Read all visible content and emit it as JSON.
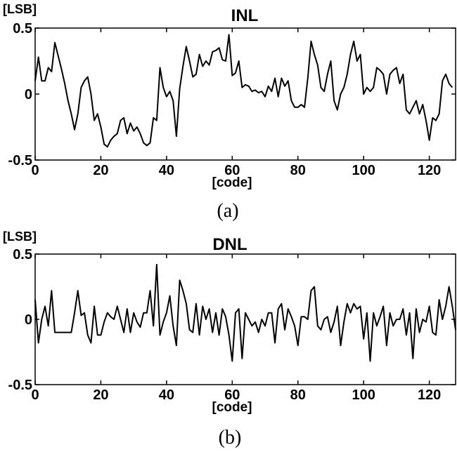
{
  "chart_data": [
    {
      "type": "line",
      "title": "INL",
      "ylabel": "[LSB]",
      "xlabel": "[code]",
      "caption": "(a)",
      "xlim": [
        0,
        128
      ],
      "ylim": [
        -0.5,
        0.5
      ],
      "xticks": [
        "0",
        "20",
        "40",
        "60",
        "80",
        "100",
        "120"
      ],
      "yticks": [
        "0.5",
        "0",
        "-0.5"
      ],
      "xtick_values": [
        0,
        20,
        40,
        60,
        80,
        100,
        120
      ],
      "ytick_values": [
        0.5,
        0,
        -0.5
      ],
      "grid": false,
      "series": [
        {
          "values": [
            0.1,
            0.28,
            0.1,
            0.1,
            0.2,
            0.17,
            0.39,
            0.29,
            0.19,
            0.08,
            -0.05,
            -0.15,
            -0.27,
            -0.15,
            0.05,
            0.1,
            0.13,
            0.0,
            -0.2,
            -0.15,
            -0.25,
            -0.38,
            -0.4,
            -0.35,
            -0.32,
            -0.3,
            -0.2,
            -0.18,
            -0.3,
            -0.22,
            -0.28,
            -0.25,
            -0.3,
            -0.37,
            -0.39,
            -0.37,
            -0.18,
            -0.2,
            0.2,
            0.05,
            -0.02,
            0.02,
            -0.05,
            -0.32,
            0.04,
            0.21,
            0.36,
            0.25,
            0.13,
            0.15,
            0.3,
            0.21,
            0.25,
            0.22,
            0.32,
            0.33,
            0.35,
            0.26,
            0.25,
            0.45,
            0.14,
            0.16,
            0.25,
            0.05,
            0.07,
            0.06,
            0.02,
            0.03,
            0.01,
            0.02,
            -0.02,
            0.06,
            0.02,
            0.12,
            -0.02,
            0.12,
            0.06,
            0.1,
            -0.05,
            -0.1,
            -0.1,
            -0.08,
            -0.1,
            0.12,
            0.4,
            0.3,
            0.22,
            0.05,
            0.02,
            0.15,
            0.25,
            -0.05,
            -0.12,
            0.0,
            0.05,
            0.15,
            0.3,
            0.4,
            0.25,
            0.3,
            0.0,
            0.05,
            0.02,
            0.05,
            0.2,
            0.18,
            0.15,
            0.0,
            0.15,
            0.18,
            0.2,
            0.08,
            0.15,
            -0.12,
            -0.15,
            -0.1,
            -0.05,
            -0.15,
            -0.08,
            -0.2,
            -0.35,
            -0.18,
            -0.2,
            -0.15,
            0.1,
            0.15,
            0.08,
            0.05
          ]
        }
      ]
    },
    {
      "type": "line",
      "title": "DNL",
      "ylabel": "[LSB]",
      "xlabel": "[code]",
      "caption": "(b)",
      "xlim": [
        0,
        128
      ],
      "ylim": [
        -0.5,
        0.5
      ],
      "xticks": [
        "0",
        "20",
        "40",
        "60",
        "80",
        "100",
        "120"
      ],
      "yticks": [
        "0.5",
        "0",
        "-0.5"
      ],
      "xtick_values": [
        0,
        20,
        40,
        60,
        80,
        100,
        120
      ],
      "ytick_values": [
        0.5,
        0,
        -0.5
      ],
      "grid": false,
      "series": [
        {
          "values": [
            0.15,
            -0.18,
            0.0,
            0.1,
            -0.05,
            0.22,
            -0.1,
            -0.1,
            -0.1,
            -0.1,
            -0.1,
            -0.1,
            0.05,
            0.22,
            0.03,
            0.05,
            -0.12,
            -0.18,
            0.1,
            -0.12,
            -0.12,
            -0.02,
            0.05,
            0.02,
            0.0,
            0.1,
            0.0,
            -0.1,
            0.08,
            -0.1,
            0.05,
            -0.02,
            -0.06,
            0.05,
            0.05,
            0.22,
            -0.05,
            0.42,
            -0.12,
            -0.02,
            0.05,
            0.18,
            -0.05,
            -0.2,
            0.3,
            0.22,
            0.12,
            -0.08,
            -0.1,
            0.12,
            -0.12,
            0.1,
            0.0,
            0.08,
            -0.1,
            0.05,
            -0.12,
            0.08,
            0.02,
            -0.12,
            -0.32,
            0.05,
            0.08,
            -0.3,
            0.05,
            0.0,
            -0.05,
            -0.02,
            -0.1,
            0.0,
            -0.05,
            0.05,
            0.05,
            -0.18,
            0.08,
            0.12,
            -0.08,
            0.08,
            0.02,
            -0.05,
            -0.2,
            0.02,
            0.02,
            0.0,
            0.22,
            0.25,
            -0.05,
            -0.08,
            0.0,
            0.02,
            -0.1,
            -0.02,
            0.1,
            -0.2,
            -0.02,
            0.12,
            0.05,
            0.12,
            0.08,
            0.1,
            -0.15,
            0.05,
            -0.32,
            0.05,
            -0.05,
            0.02,
            0.1,
            -0.2,
            0.05,
            -0.05,
            0.0,
            0.0,
            0.08,
            -0.12,
            0.05,
            -0.3,
            0.08,
            -0.1,
            0.0,
            -0.02,
            0.1,
            -0.1,
            -0.12,
            0.15,
            0.0,
            0.1,
            0.25,
            0.1,
            -0.08
          ]
        }
      ]
    }
  ]
}
